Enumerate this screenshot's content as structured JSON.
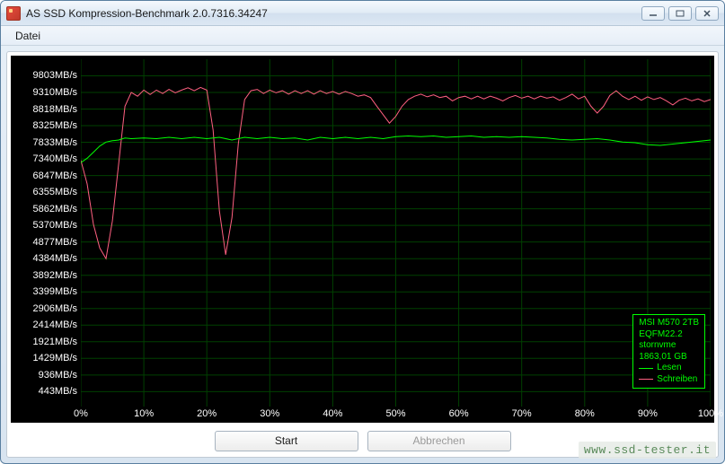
{
  "window": {
    "title": "AS SSD Kompression-Benchmark 2.0.7316.34247"
  },
  "menu": {
    "file": "Datei"
  },
  "buttons": {
    "start": "Start",
    "abort": "Abbrechen"
  },
  "watermark": "www.ssd-tester.it",
  "legend": {
    "device": "MSI M570 2TB",
    "firmware": "EQFM22.2",
    "driver": "stornvme",
    "capacity": "1863,01 GB",
    "read_label": "Lesen",
    "write_label": "Schreiben"
  },
  "chart": {
    "type": "line",
    "background_color": "#000000",
    "grid_color": "#004000",
    "text_color": "#ffffff",
    "y_unit": "MB/s",
    "ylim": [
      0,
      10295
    ],
    "y_ticks": [
      443,
      936,
      1429,
      1921,
      2414,
      2906,
      3399,
      3892,
      4384,
      4877,
      5370,
      5862,
      6355,
      6847,
      7340,
      7833,
      8325,
      8818,
      9310,
      9803
    ],
    "xlim": [
      0,
      100
    ],
    "x_ticks": [
      0,
      10,
      20,
      30,
      40,
      50,
      60,
      70,
      80,
      90,
      100
    ],
    "series": {
      "read": {
        "color": "#00ff00",
        "line_width": 1,
        "points": [
          [
            0,
            7230
          ],
          [
            1,
            7360
          ],
          [
            2,
            7540
          ],
          [
            3,
            7720
          ],
          [
            4,
            7840
          ],
          [
            5,
            7880
          ],
          [
            6,
            7900
          ],
          [
            7,
            7960
          ],
          [
            8,
            7940
          ],
          [
            10,
            7960
          ],
          [
            12,
            7940
          ],
          [
            14,
            7980
          ],
          [
            16,
            7940
          ],
          [
            18,
            7980
          ],
          [
            20,
            7940
          ],
          [
            22,
            7980
          ],
          [
            24,
            7900
          ],
          [
            26,
            7980
          ],
          [
            28,
            7940
          ],
          [
            30,
            7980
          ],
          [
            32,
            7940
          ],
          [
            34,
            7960
          ],
          [
            36,
            7900
          ],
          [
            38,
            7980
          ],
          [
            40,
            7940
          ],
          [
            42,
            7980
          ],
          [
            44,
            7940
          ],
          [
            46,
            7980
          ],
          [
            48,
            7940
          ],
          [
            50,
            8000
          ],
          [
            52,
            8020
          ],
          [
            54,
            8000
          ],
          [
            56,
            8020
          ],
          [
            58,
            7980
          ],
          [
            60,
            8000
          ],
          [
            62,
            8020
          ],
          [
            64,
            7980
          ],
          [
            66,
            8000
          ],
          [
            68,
            7980
          ],
          [
            70,
            8000
          ],
          [
            72,
            7980
          ],
          [
            74,
            7960
          ],
          [
            76,
            7920
          ],
          [
            78,
            7900
          ],
          [
            80,
            7920
          ],
          [
            82,
            7940
          ],
          [
            84,
            7900
          ],
          [
            86,
            7840
          ],
          [
            88,
            7820
          ],
          [
            90,
            7760
          ],
          [
            92,
            7740
          ],
          [
            94,
            7780
          ],
          [
            96,
            7820
          ],
          [
            98,
            7860
          ],
          [
            100,
            7900
          ]
        ]
      },
      "write": {
        "color": "#ff6080",
        "line_width": 1,
        "points": [
          [
            0,
            7300
          ],
          [
            1,
            6600
          ],
          [
            2,
            5400
          ],
          [
            3,
            4700
          ],
          [
            4,
            4384
          ],
          [
            5,
            5500
          ],
          [
            6,
            7200
          ],
          [
            7,
            8900
          ],
          [
            8,
            9310
          ],
          [
            9,
            9200
          ],
          [
            10,
            9380
          ],
          [
            11,
            9250
          ],
          [
            12,
            9380
          ],
          [
            13,
            9280
          ],
          [
            14,
            9400
          ],
          [
            15,
            9300
          ],
          [
            16,
            9380
          ],
          [
            17,
            9450
          ],
          [
            18,
            9360
          ],
          [
            19,
            9460
          ],
          [
            20,
            9380
          ],
          [
            21,
            8200
          ],
          [
            22,
            5800
          ],
          [
            23,
            4500
          ],
          [
            24,
            5600
          ],
          [
            25,
            7800
          ],
          [
            26,
            9100
          ],
          [
            27,
            9360
          ],
          [
            28,
            9400
          ],
          [
            29,
            9280
          ],
          [
            30,
            9380
          ],
          [
            31,
            9300
          ],
          [
            32,
            9360
          ],
          [
            33,
            9260
          ],
          [
            34,
            9360
          ],
          [
            35,
            9280
          ],
          [
            36,
            9360
          ],
          [
            37,
            9260
          ],
          [
            38,
            9360
          ],
          [
            39,
            9280
          ],
          [
            40,
            9340
          ],
          [
            41,
            9260
          ],
          [
            42,
            9340
          ],
          [
            43,
            9280
          ],
          [
            44,
            9200
          ],
          [
            45,
            9240
          ],
          [
            46,
            9160
          ],
          [
            47,
            8900
          ],
          [
            48,
            8650
          ],
          [
            49,
            8400
          ],
          [
            50,
            8600
          ],
          [
            51,
            8900
          ],
          [
            52,
            9100
          ],
          [
            53,
            9200
          ],
          [
            54,
            9260
          ],
          [
            55,
            9180
          ],
          [
            56,
            9240
          ],
          [
            57,
            9160
          ],
          [
            58,
            9200
          ],
          [
            59,
            9060
          ],
          [
            60,
            9160
          ],
          [
            61,
            9200
          ],
          [
            62,
            9120
          ],
          [
            63,
            9200
          ],
          [
            64,
            9120
          ],
          [
            65,
            9200
          ],
          [
            66,
            9140
          ],
          [
            67,
            9060
          ],
          [
            68,
            9160
          ],
          [
            69,
            9220
          ],
          [
            70,
            9140
          ],
          [
            71,
            9200
          ],
          [
            72,
            9120
          ],
          [
            73,
            9200
          ],
          [
            74,
            9140
          ],
          [
            75,
            9180
          ],
          [
            76,
            9080
          ],
          [
            77,
            9160
          ],
          [
            78,
            9260
          ],
          [
            79,
            9120
          ],
          [
            80,
            9200
          ],
          [
            81,
            8900
          ],
          [
            82,
            8700
          ],
          [
            83,
            8900
          ],
          [
            84,
            9220
          ],
          [
            85,
            9360
          ],
          [
            86,
            9200
          ],
          [
            87,
            9100
          ],
          [
            88,
            9200
          ],
          [
            89,
            9080
          ],
          [
            90,
            9180
          ],
          [
            91,
            9100
          ],
          [
            92,
            9160
          ],
          [
            93,
            9060
          ],
          [
            94,
            8940
          ],
          [
            95,
            9080
          ],
          [
            96,
            9140
          ],
          [
            97,
            9060
          ],
          [
            98,
            9120
          ],
          [
            99,
            9040
          ],
          [
            100,
            9100
          ]
        ]
      }
    }
  }
}
